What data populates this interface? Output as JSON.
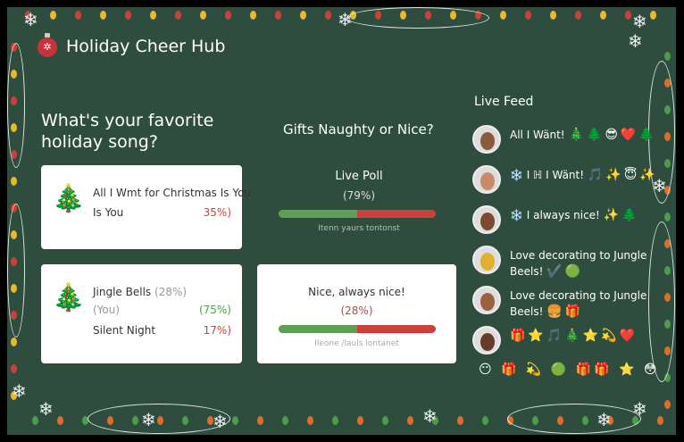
{
  "app": {
    "title": "Holiday Cheer Hub",
    "logo_icon": "ornament-icon"
  },
  "song_poll": {
    "question": "What's your favorite holiday song?",
    "card1": {
      "song": "All I Wmt for Christmas Is You",
      "song_line2": "Is You",
      "percent": "35%)"
    },
    "card2": {
      "song": "Jingle Bells",
      "song_percent": "(28%)",
      "sub": "(You)",
      "sub_percent": "(75%)",
      "song2": "Silent Night",
      "song2_percent": "17%)"
    }
  },
  "gift_poll": {
    "question": "Gifts Naughty or Nice?",
    "live": {
      "label": "Live Poll",
      "percent": "(79%)",
      "nice_fraction": 0.5,
      "caption": "Itenn yaurs tontonst"
    },
    "card": {
      "label": "Nice, always nice!",
      "percent": "(28%)",
      "nice_fraction": 0.5,
      "caption": "Ileone /lauls lontanet"
    }
  },
  "feed": {
    "title": "Live Feed",
    "items": [
      {
        "text": "All I Wänt!",
        "emoji": "🎄🌲😎❤️🌲"
      },
      {
        "text": "❄️ I ℍ I Wänt!",
        "emoji": "🎵✨😇✨"
      },
      {
        "text": "❄️ I always nice!",
        "emoji": "✨🌲"
      },
      {
        "text": "Love decorating to Jungle Beels!",
        "emoji": "✔️🟢"
      },
      {
        "text": "Love decorating to Jungle Beels!",
        "emoji": "🍔🎁"
      },
      {
        "text": "",
        "emoji": "🎁⭐🎵🎄⭐💫❤️"
      }
    ],
    "bottom_emoji": "😶 🎁 💫 🟢 🎁🎁 ⭐ 😳"
  },
  "colors": {
    "background": "#2f4d3f",
    "red": "#c9413a",
    "green": "#5f9f55"
  }
}
